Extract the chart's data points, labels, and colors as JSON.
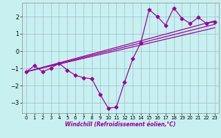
{
  "xlabel": "Windchill (Refroidissement éolien,°C)",
  "bg_color": "#c8f0f0",
  "line_color": "#990099",
  "grid_color": "#99bbcc",
  "xlim": [
    -0.5,
    23.5
  ],
  "ylim": [
    -3.6,
    2.8
  ],
  "xticks": [
    0,
    1,
    2,
    3,
    4,
    5,
    6,
    7,
    8,
    9,
    10,
    11,
    12,
    13,
    14,
    15,
    16,
    17,
    18,
    19,
    20,
    21,
    22,
    23
  ],
  "yticks": [
    -3,
    -2,
    -1,
    0,
    1,
    2
  ],
  "data_line": [
    [
      0,
      -1.2
    ],
    [
      1,
      -0.85
    ],
    [
      2,
      -1.2
    ],
    [
      3,
      -1.0
    ],
    [
      4,
      -0.7
    ],
    [
      5,
      -1.1
    ],
    [
      6,
      -1.4
    ],
    [
      7,
      -1.55
    ],
    [
      8,
      -1.6
    ],
    [
      9,
      -2.5
    ],
    [
      10,
      -3.3
    ],
    [
      11,
      -3.25
    ],
    [
      12,
      -1.8
    ],
    [
      13,
      -0.45
    ],
    [
      14,
      0.5
    ],
    [
      15,
      2.4
    ],
    [
      16,
      2.0
    ],
    [
      17,
      1.5
    ],
    [
      18,
      2.5
    ],
    [
      19,
      1.9
    ],
    [
      20,
      1.6
    ],
    [
      21,
      1.95
    ],
    [
      22,
      1.6
    ],
    [
      23,
      1.7
    ]
  ],
  "trend_lines": [
    {
      "x0": 0,
      "y0": -1.2,
      "x1": 23,
      "y1": 1.75
    },
    {
      "x0": 0,
      "y0": -1.2,
      "x1": 23,
      "y1": 1.55
    },
    {
      "x0": 0,
      "y0": -1.2,
      "x1": 23,
      "y1": 1.35
    }
  ],
  "marker": "D",
  "markersize": 2.5,
  "linewidth": 0.9
}
